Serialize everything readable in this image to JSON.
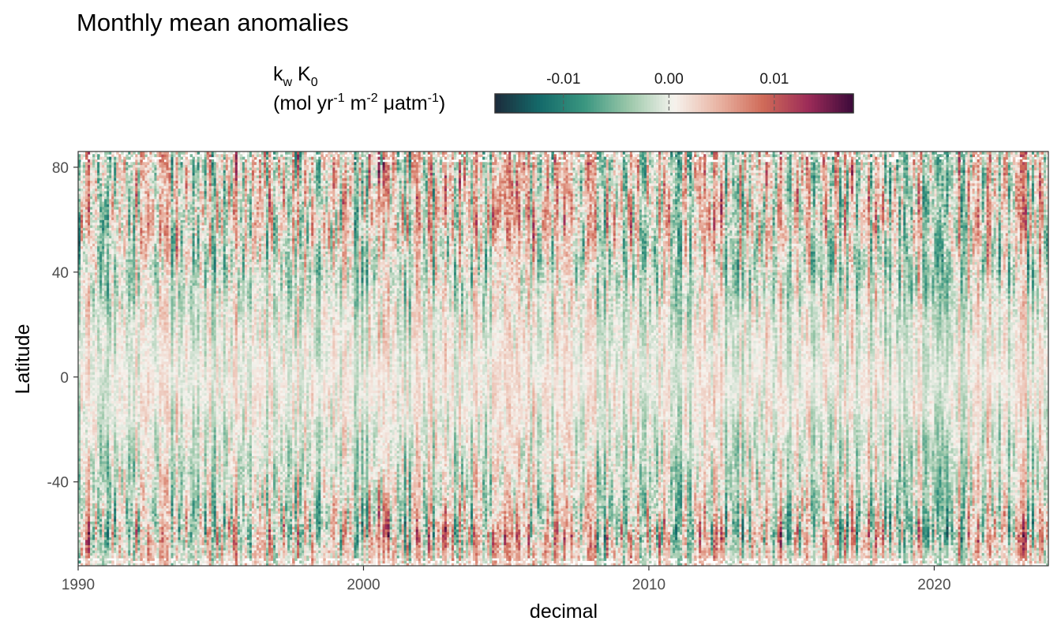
{
  "chart_data": {
    "type": "heatmap",
    "title": "Monthly mean anomalies",
    "xlabel": "decimal",
    "ylabel": "Latitude",
    "xlim": [
      1990,
      2024
    ],
    "ylim": [
      -72,
      86
    ],
    "x_ticks": [
      1990,
      2000,
      2010,
      2020
    ],
    "y_ticks": [
      -40,
      0,
      40,
      80
    ],
    "x_tick_labels": [
      "1990",
      "2000",
      "2010",
      "2020"
    ],
    "y_tick_labels": [
      "-40",
      "0",
      "40",
      "80"
    ],
    "legend": {
      "title_line1": {
        "main": "k",
        "sub": "w",
        "rest": " K",
        "sub2": "0"
      },
      "title_line2": {
        "p1": "(mol yr",
        "s1": "-1",
        "p2": " m",
        "s2": "-2",
        "p3": " μatm",
        "s3": "-1",
        "p4": ")"
      },
      "placement": "top",
      "range": [
        -0.0165,
        0.0175
      ],
      "ticks": [
        -0.01,
        0.0,
        0.01
      ],
      "tick_labels": [
        "-0.01",
        "0.00",
        "0.01"
      ]
    },
    "colormap": [
      "#1c2b3b",
      "#146a6a",
      "#3a9680",
      "#9cc8aa",
      "#f6f3ee",
      "#e9b3a2",
      "#cf6a58",
      "#9c2b58",
      "#3b0a3a"
    ],
    "grid": false,
    "data_description_values": {
      "x_step": 0.0833,
      "y_step": 1.0,
      "anomaly_amplitude_by_lat": [
        {
          "lat": -72,
          "amp": 0.008
        },
        {
          "lat": -60,
          "amp": 0.016
        },
        {
          "lat": -45,
          "amp": 0.01
        },
        {
          "lat": -20,
          "amp": 0.006
        },
        {
          "lat": 0,
          "amp": 0.004
        },
        {
          "lat": 20,
          "amp": 0.006
        },
        {
          "lat": 40,
          "amp": 0.01
        },
        {
          "lat": 60,
          "amp": 0.013
        },
        {
          "lat": 86,
          "amp": 0.014
        }
      ]
    }
  }
}
